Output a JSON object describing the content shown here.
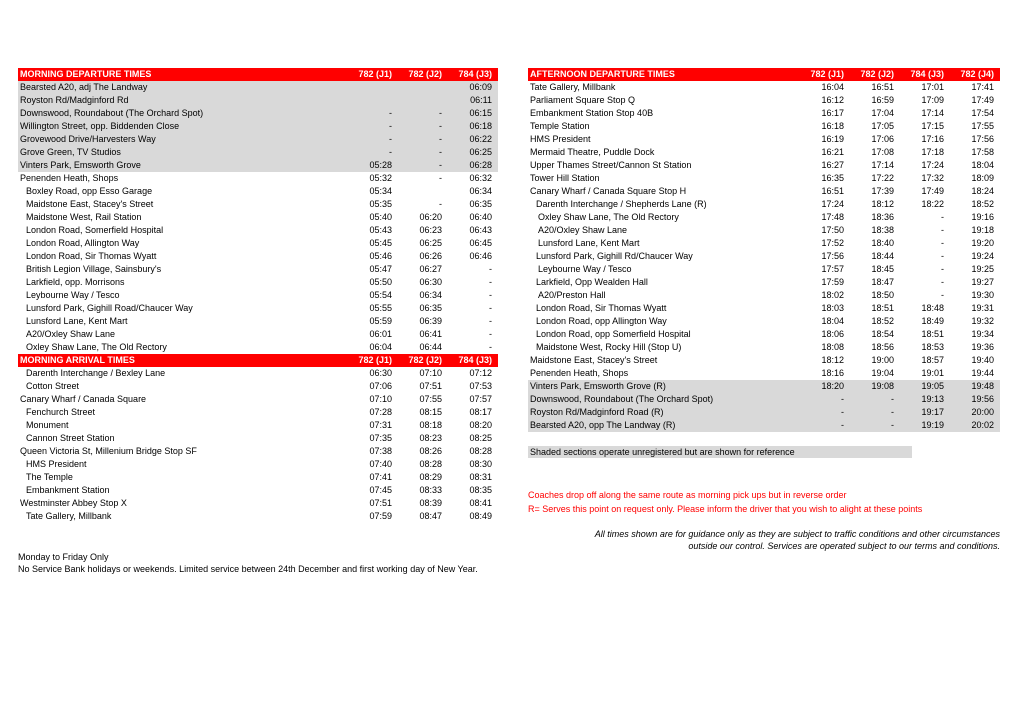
{
  "left": {
    "depHeader": [
      "MORNING DEPARTURE TIMES",
      "782 (J1)",
      "782 (J2)",
      "784 (J3)"
    ],
    "depRows": [
      {
        "n": "Bearsted A20, adj The Landway",
        "t": [
          "",
          "",
          "06:09"
        ],
        "shade": true
      },
      {
        "n": "Royston Rd/Madginford Rd",
        "t": [
          "",
          "",
          "06:11"
        ],
        "shade": true
      },
      {
        "n": "Downswood, Roundabout (The Orchard Spot)",
        "t": [
          "-",
          "-",
          "06:15"
        ],
        "shade": true
      },
      {
        "n": "Willington Street, opp. Biddenden Close",
        "t": [
          "-",
          "-",
          "06:18"
        ],
        "shade": true
      },
      {
        "n": "Grovewood Drive/Harvesters Way",
        "t": [
          "-",
          "-",
          "06:22"
        ],
        "shade": true
      },
      {
        "n": "Grove Green, TV Studios",
        "t": [
          "-",
          "-",
          "06:25"
        ],
        "shade": true
      },
      {
        "n": "Vinters Park, Emsworth Grove",
        "t": [
          "05:28",
          "-",
          "06:28"
        ],
        "shade": true
      },
      {
        "n": "Penenden Heath, Shops",
        "t": [
          "05:32",
          "-",
          "06:32"
        ]
      },
      {
        "n": "Boxley Road, opp Esso Garage",
        "t": [
          "05:34",
          "",
          "06:34"
        ],
        "indent": 1
      },
      {
        "n": "Maidstone East, Stacey's Street",
        "t": [
          "05:35",
          "-",
          "06:35"
        ],
        "indent": 1
      },
      {
        "n": "Maidstone West, Rail Station",
        "t": [
          "05:40",
          "06:20",
          "06:40"
        ],
        "indent": 1
      },
      {
        "n": "London Road, Somerfield Hospital",
        "t": [
          "05:43",
          "06:23",
          "06:43"
        ],
        "indent": 1
      },
      {
        "n": "London Road, Allington Way",
        "t": [
          "05:45",
          "06:25",
          "06:45"
        ],
        "indent": 1
      },
      {
        "n": "London Road, Sir Thomas Wyatt",
        "t": [
          "05:46",
          "06:26",
          "06:46"
        ],
        "indent": 1
      },
      {
        "n": "British Legion Village, Sainsbury's",
        "t": [
          "05:47",
          "06:27",
          "-"
        ],
        "indent": 1
      },
      {
        "n": "Larkfield, opp. Morrisons",
        "t": [
          "05:50",
          "06:30",
          "-"
        ],
        "indent": 1
      },
      {
        "n": "Leybourne Way / Tesco",
        "t": [
          "05:54",
          "06:34",
          "-"
        ],
        "indent": 1
      },
      {
        "n": "Lunsford Park, Gighill Road/Chaucer Way",
        "t": [
          "05:55",
          "06:35",
          "-"
        ],
        "indent": 1
      },
      {
        "n": "Lunsford Lane, Kent Mart",
        "t": [
          "05:59",
          "06:39",
          "-"
        ],
        "indent": 1
      },
      {
        "n": "A20/Oxley Shaw Lane",
        "t": [
          "06:01",
          "06:41",
          "-"
        ],
        "indent": 1
      },
      {
        "n": "Oxley Shaw Lane,  The Old Rectory",
        "t": [
          "06:04",
          "06:44",
          "-"
        ],
        "indent": 1
      }
    ],
    "arrHeader": [
      "MORNING ARRIVAL TIMES",
      "782 (J1)",
      "782 (J2)",
      "784 (J3)"
    ],
    "arrRows": [
      {
        "n": "Darenth Interchange / Bexley Lane",
        "t": [
          "06:30",
          "07:10",
          "07:12"
        ],
        "indent": 1
      },
      {
        "n": "Cotton Street",
        "t": [
          "07:06",
          "07:51",
          "07:53"
        ],
        "indent": 1
      },
      {
        "n": "Canary Wharf / Canada Square",
        "t": [
          "07:10",
          "07:55",
          "07:57"
        ]
      },
      {
        "n": "Fenchurch Street",
        "t": [
          "07:28",
          "08:15",
          "08:17"
        ],
        "indent": 1
      },
      {
        "n": "Monument",
        "t": [
          "07:31",
          "08:18",
          "08:20"
        ],
        "indent": 1
      },
      {
        "n": "Cannon Street Station",
        "t": [
          "07:35",
          "08:23",
          "08:25"
        ],
        "indent": 1
      },
      {
        "n": "Queen Victoria St, Millenium Bridge Stop SF",
        "t": [
          "07:38",
          "08:26",
          "08:28"
        ]
      },
      {
        "n": "HMS President",
        "t": [
          "07:40",
          "08:28",
          "08:30"
        ],
        "indent": 1
      },
      {
        "n": "The Temple",
        "t": [
          "07:41",
          "08:29",
          "08:31"
        ],
        "indent": 1
      },
      {
        "n": "Embankment Station",
        "t": [
          "07:45",
          "08:33",
          "08:35"
        ],
        "indent": 1
      },
      {
        "n": "Westminster Abbey Stop X",
        "t": [
          "07:51",
          "08:39",
          "08:41"
        ]
      },
      {
        "n": "Tate Gallery, Millbank",
        "t": [
          "07:59",
          "08:47",
          "08:49"
        ],
        "indent": 1
      }
    ],
    "footer1": "Monday to Friday Only",
    "footer2": "No Service Bank holidays or weekends. Limited service between 24th December and first working day of New Year."
  },
  "right": {
    "depHeader": [
      "AFTERNOON DEPARTURE TIMES",
      "782 (J1)",
      "782 (J2)",
      "784 (J3)",
      "782 (J4)"
    ],
    "depRows": [
      {
        "n": "Tate Gallery, Millbank",
        "t": [
          "16:04",
          "16:51",
          "17:01",
          "17:41"
        ]
      },
      {
        "n": "Parliament Square Stop Q",
        "t": [
          "16:12",
          "16:59",
          "17:09",
          "17:49"
        ]
      },
      {
        "n": "Embankment Station Stop 40B",
        "t": [
          "16:17",
          "17:04",
          "17:14",
          "17:54"
        ]
      },
      {
        "n": "Temple Station",
        "t": [
          "16:18",
          "17:05",
          "17:15",
          "17:55"
        ]
      },
      {
        "n": "HMS President",
        "t": [
          "16:19",
          "17:06",
          "17:16",
          "17:56"
        ]
      },
      {
        "n": "Mermaid Theatre, Puddle Dock",
        "t": [
          "16:21",
          "17:08",
          "17:18",
          "17:58"
        ]
      },
      {
        "n": "Upper Thames Street/Cannon St Station",
        "t": [
          "16:27",
          "17:14",
          "17:24",
          "18:04"
        ]
      },
      {
        "n": "Tower Hill Station",
        "t": [
          "16:35",
          "17:22",
          "17:32",
          "18:09"
        ]
      },
      {
        "n": "Canary Wharf / Canada Square Stop H",
        "t": [
          "16:51",
          "17:39",
          "17:49",
          "18:24"
        ]
      },
      {
        "n": "Darenth Interchange / Shepherds  Lane (R)",
        "t": [
          "17:24",
          "18:12",
          "18:22",
          "18:52"
        ],
        "indent": 1
      },
      {
        "n": "Oxley Shaw Lane, The Old Rectory",
        "t": [
          "17:48",
          "18:36",
          "-",
          "19:16"
        ],
        "indent": 2
      },
      {
        "n": "A20/Oxley Shaw Lane",
        "t": [
          "17:50",
          "18:38",
          "-",
          "19:18"
        ],
        "indent": 2
      },
      {
        "n": "Lunsford Lane, Kent Mart",
        "t": [
          "17:52",
          "18:40",
          "-",
          "19:20"
        ],
        "indent": 2
      },
      {
        "n": "Lunsford Park, Gighill Rd/Chaucer Way",
        "t": [
          "17:56",
          "18:44",
          "-",
          "19:24"
        ],
        "indent": 1
      },
      {
        "n": "Leybourne Way / Tesco",
        "t": [
          "17:57",
          "18:45",
          "-",
          "19:25"
        ],
        "indent": 2
      },
      {
        "n": "Larkfield, Opp Wealden Hall",
        "t": [
          "17:59",
          "18:47",
          "-",
          "19:27"
        ],
        "indent": 1
      },
      {
        "n": "A20/Preston Hall",
        "t": [
          "18:02",
          "18:50",
          "-",
          "19:30"
        ],
        "indent": 2
      },
      {
        "n": "London Road, Sir Thomas Wyatt",
        "t": [
          "18:03",
          "18:51",
          "18:48",
          "19:31"
        ],
        "indent": 1
      },
      {
        "n": "London Road, opp Allington Way",
        "t": [
          "18:04",
          "18:52",
          "18:49",
          "19:32"
        ],
        "indent": 1
      },
      {
        "n": "London Road, opp Somerfield Hospital",
        "t": [
          "18:06",
          "18:54",
          "18:51",
          "19:34"
        ],
        "indent": 1
      },
      {
        "n": "Maidstone West, Rocky Hill (Stop U)",
        "t": [
          "18:08",
          "18:56",
          "18:53",
          "19:36"
        ],
        "indent": 1
      },
      {
        "n": "Maidstone East, Stacey's Street",
        "t": [
          "18:12",
          "19:00",
          "18:57",
          "19:40"
        ]
      },
      {
        "n": "Penenden Heath, Shops",
        "t": [
          "18:16",
          "19:04",
          "19:01",
          "19:44"
        ]
      },
      {
        "n": "Vinters Park, Emsworth Grove (R)",
        "t": [
          "18:20",
          "19:08",
          "19:05",
          "19:48"
        ],
        "shade": true
      },
      {
        "n": "Downswood, Roundabout (The Orchard Spot)",
        "t": [
          "-",
          "-",
          "19:13",
          "19:56"
        ],
        "shade": true
      },
      {
        "n": "Royston Rd/Madginford Road (R)",
        "t": [
          "-",
          "-",
          "19:17",
          "20:00"
        ],
        "shade": true
      },
      {
        "n": "Bearsted A20, opp The Landway (R)",
        "t": [
          "-",
          "-",
          "19:19",
          "20:02"
        ],
        "shade": true
      }
    ],
    "shadeNote": "Shaded sections operate unregistered but are shown for reference",
    "redNote1": "Coaches drop off along the same route as morning pick ups but in reverse order",
    "redNote2": "R= Serves this point on request only.  Please inform the driver that you wish to alight at these points",
    "italics1": "All times shown are for guidance only as they are subject to traffic conditions and other circumstances",
    "italics2": "outside our control. Services are operated subject to our terms and conditions."
  }
}
